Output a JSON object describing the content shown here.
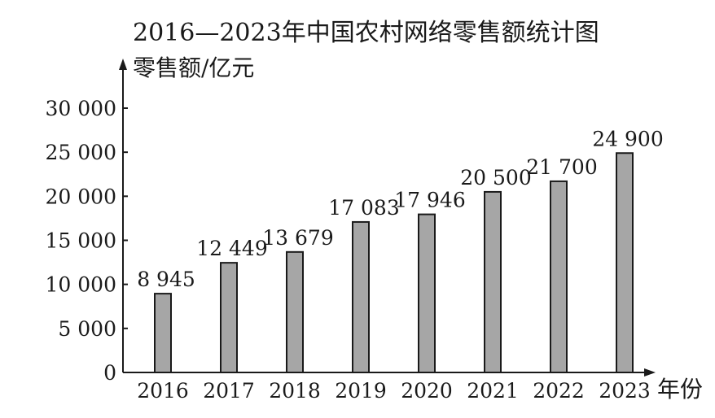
{
  "chart_data": {
    "type": "bar",
    "title": "2016—2023年中国农村网络零售额统计图",
    "ylabel": "零售额/亿元",
    "xlabel": "年份",
    "categories": [
      "2016",
      "2017",
      "2018",
      "2019",
      "2020",
      "2021",
      "2022",
      "2023"
    ],
    "values": [
      8945,
      12449,
      13679,
      17083,
      17946,
      20500,
      21700,
      24900
    ],
    "value_labels": [
      "8 945",
      "12 449",
      "13 679",
      "17 083",
      "17 946",
      "20 500",
      "21 700",
      "24 900"
    ],
    "ylim": [
      0,
      30000
    ],
    "yticks": [
      0,
      5000,
      10000,
      15000,
      20000,
      25000,
      30000
    ],
    "ytick_labels": [
      "0",
      "5 000",
      "10 000",
      "15 000",
      "20 000",
      "25 000",
      "30 000"
    ],
    "grid": false,
    "legend": "none",
    "colors": {
      "bar_fill": "#a6a6a6",
      "bar_stroke": "#1a1a1a",
      "axis": "#1a1a1a",
      "text": "#1a1a1a"
    }
  }
}
